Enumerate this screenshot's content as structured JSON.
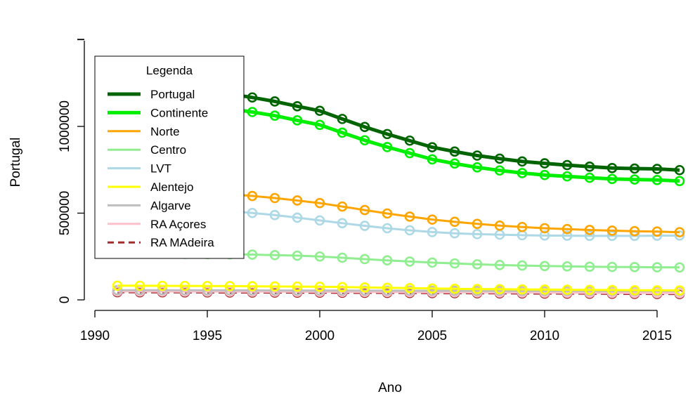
{
  "chart_data": {
    "type": "line",
    "xlabel": "Ano",
    "ylabel": "Portugal",
    "xlim": [
      1991,
      2016
    ],
    "ylim": [
      0,
      1200000
    ],
    "x_ticks": [
      1990,
      1995,
      2000,
      2005,
      2010,
      2015
    ],
    "y_ticks": [
      0,
      500000,
      1000000
    ],
    "grid": false,
    "legend": {
      "title": "Legenda",
      "position": "left"
    },
    "x": [
      1991,
      1992,
      1993,
      1994,
      1995,
      1996,
      1997,
      1998,
      1999,
      2000,
      2001,
      2002,
      2003,
      2004,
      2005,
      2006,
      2007,
      2008,
      2009,
      2010,
      2011,
      2012,
      2013,
      2014,
      2015,
      2016
    ],
    "series": [
      {
        "name": "Portugal",
        "color": "#006400",
        "line_style": "solid",
        "line_width": 5,
        "values": [
          1230000,
          1228000,
          1222000,
          1214000,
          1203000,
          1187000,
          1167000,
          1144000,
          1116000,
          1090000,
          1043000,
          997000,
          956000,
          918000,
          880000,
          855000,
          832000,
          814000,
          798000,
          787000,
          777000,
          768000,
          760000,
          757000,
          755000,
          748000
        ]
      },
      {
        "name": "Continente",
        "color": "#00EE00",
        "line_style": "solid",
        "line_width": 5,
        "values": [
          1141000,
          1139000,
          1134000,
          1127000,
          1117000,
          1102000,
          1083000,
          1062000,
          1035000,
          1009000,
          964000,
          920000,
          881000,
          846000,
          810000,
          786000,
          764000,
          746000,
          731000,
          720000,
          712000,
          704000,
          697000,
          694000,
          691000,
          685000
        ]
      },
      {
        "name": "Norte",
        "color": "#FFA500",
        "line_style": "solid",
        "line_width": 3,
        "values": [
          632000,
          631000,
          628000,
          624000,
          618000,
          609000,
          599000,
          587000,
          573000,
          558000,
          538000,
          518000,
          498000,
          480000,
          463000,
          450000,
          438000,
          428000,
          420000,
          413000,
          408000,
          403000,
          399000,
          396000,
          394000,
          390000
        ]
      },
      {
        "name": "Centro",
        "color": "#90EE90",
        "line_style": "solid",
        "line_width": 3,
        "values": [
          268000,
          267000,
          266000,
          265000,
          264000,
          263000,
          261000,
          258000,
          255000,
          250000,
          243000,
          235000,
          228000,
          221000,
          215000,
          210000,
          205000,
          201000,
          198000,
          195000,
          193000,
          191000,
          190000,
          189000,
          188000,
          187000
        ]
      },
      {
        "name": "LVT",
        "color": "#ADD8E6",
        "line_style": "solid",
        "line_width": 3,
        "values": [
          532000,
          531000,
          528000,
          524000,
          519000,
          511000,
          501000,
          489000,
          474000,
          458000,
          442000,
          427000,
          413000,
          401000,
          391000,
          384000,
          379000,
          376000,
          373000,
          371000,
          370000,
          369000,
          369000,
          369000,
          370000,
          371000
        ]
      },
      {
        "name": "Alentejo",
        "color": "#FFFF00",
        "line_style": "solid",
        "line_width": 3,
        "values": [
          82000,
          81500,
          81000,
          80500,
          80000,
          79500,
          78500,
          77500,
          76500,
          75500,
          73500,
          71500,
          69500,
          67500,
          65500,
          64000,
          62500,
          61500,
          60500,
          59500,
          58500,
          57500,
          56500,
          55500,
          55000,
          54500
        ]
      },
      {
        "name": "Algarve",
        "color": "#BEBEBE",
        "line_style": "solid",
        "line_width": 3,
        "values": [
          56000,
          55800,
          55500,
          55200,
          55000,
          54800,
          54500,
          54200,
          54000,
          53800,
          53500,
          53200,
          53000,
          52800,
          52500,
          52200,
          52000,
          51800,
          51600,
          51400,
          51200,
          51000,
          50800,
          50600,
          50500,
          50400
        ]
      },
      {
        "name": "RA Açores",
        "color": "#FFC0CB",
        "line_style": "solid",
        "line_width": 3,
        "values": [
          49000,
          48800,
          48500,
          48200,
          48000,
          47700,
          47400,
          47100,
          46800,
          46500,
          46000,
          45500,
          45000,
          44500,
          44000,
          43500,
          43000,
          42500,
          42000,
          41500,
          41000,
          40500,
          40000,
          39500,
          39000,
          38500
        ]
      },
      {
        "name": "RA MAdeira",
        "color": "#A52A2A",
        "line_style": "dashed",
        "line_width": 3,
        "values": [
          44000,
          43800,
          43500,
          43200,
          43000,
          42700,
          42400,
          42100,
          41800,
          41500,
          41000,
          40500,
          40000,
          39500,
          39000,
          38500,
          38000,
          37500,
          37000,
          36500,
          36000,
          35500,
          35000,
          34500,
          34000,
          33500
        ]
      }
    ]
  }
}
